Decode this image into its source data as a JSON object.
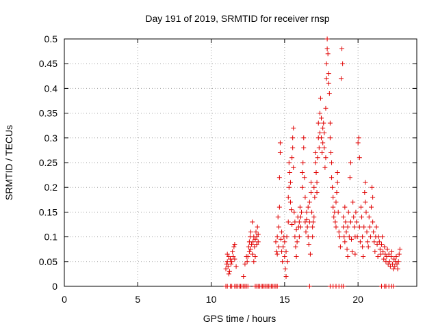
{
  "chart_data": {
    "type": "scatter",
    "title": "Day 191 of 2019, SRMTID for receiver rnsp",
    "xlabel": "GPS time / hours",
    "ylabel": "SRMTID / TECUs",
    "xlim": [
      0,
      24
    ],
    "ylim": [
      0,
      0.5
    ],
    "grid": true,
    "color": "#e00000",
    "x_ticks": [
      {
        "value": 0,
        "label": "0"
      },
      {
        "value": 5,
        "label": "5"
      },
      {
        "value": 10,
        "label": "10"
      },
      {
        "value": 15,
        "label": "15"
      },
      {
        "value": 20,
        "label": "20"
      }
    ],
    "y_ticks": [
      {
        "value": 0,
        "label": "0"
      },
      {
        "value": 0.05,
        "label": "0.05"
      },
      {
        "value": 0.1,
        "label": "0.1"
      },
      {
        "value": 0.15,
        "label": "0.15"
      },
      {
        "value": 0.2,
        "label": "0.2"
      },
      {
        "value": 0.25,
        "label": "0.25"
      },
      {
        "value": 0.3,
        "label": "0.3"
      },
      {
        "value": 0.35,
        "label": "0.35"
      },
      {
        "value": 0.4,
        "label": "0.4"
      },
      {
        "value": 0.45,
        "label": "0.45"
      },
      {
        "value": 0.5,
        "label": "0.5"
      }
    ],
    "series": [
      {
        "name": "SRMTID",
        "points": [
          [
            11.0,
            0.0
          ],
          [
            11.1,
            0.0
          ],
          [
            11.3,
            0.0
          ],
          [
            11.4,
            0.0
          ],
          [
            11.6,
            0.0
          ],
          [
            11.7,
            0.0
          ],
          [
            11.8,
            0.0
          ],
          [
            11.9,
            0.0
          ],
          [
            12.0,
            0.0
          ],
          [
            12.1,
            0.0
          ],
          [
            12.2,
            0.0
          ],
          [
            12.3,
            0.0
          ],
          [
            12.4,
            0.0
          ],
          [
            12.5,
            0.0
          ],
          [
            13.0,
            0.0
          ],
          [
            13.1,
            0.0
          ],
          [
            13.2,
            0.0
          ],
          [
            13.3,
            0.0
          ],
          [
            13.4,
            0.0
          ],
          [
            13.5,
            0.0
          ],
          [
            13.6,
            0.0
          ],
          [
            13.7,
            0.0
          ],
          [
            13.8,
            0.0
          ],
          [
            13.9,
            0.0
          ],
          [
            14.0,
            0.0
          ],
          [
            14.1,
            0.0
          ],
          [
            14.2,
            0.0
          ],
          [
            14.3,
            0.0
          ],
          [
            14.4,
            0.0
          ],
          [
            14.5,
            0.0
          ],
          [
            16.7,
            0.0
          ],
          [
            18.1,
            0.0
          ],
          [
            18.3,
            0.0
          ],
          [
            18.5,
            0.0
          ],
          [
            18.7,
            0.0
          ],
          [
            18.9,
            0.0
          ],
          [
            19.0,
            0.0
          ],
          [
            21.6,
            0.0
          ],
          [
            21.8,
            0.0
          ],
          [
            21.9,
            0.0
          ],
          [
            22.1,
            0.0
          ],
          [
            22.3,
            0.0
          ],
          [
            22.4,
            0.0
          ],
          [
            11.0,
            0.035
          ],
          [
            11.05,
            0.045
          ],
          [
            11.1,
            0.05
          ],
          [
            11.15,
            0.04
          ],
          [
            11.2,
            0.06
          ],
          [
            11.25,
            0.03
          ],
          [
            11.3,
            0.055
          ],
          [
            11.1,
            0.065
          ],
          [
            11.2,
            0.025
          ],
          [
            11.35,
            0.045
          ],
          [
            11.4,
            0.05
          ],
          [
            11.45,
            0.07
          ],
          [
            11.5,
            0.06
          ],
          [
            11.55,
            0.08
          ],
          [
            11.6,
            0.055
          ],
          [
            11.6,
            0.085
          ],
          [
            11.7,
            0.04
          ],
          [
            12.2,
            0.02
          ],
          [
            12.3,
            0.045
          ],
          [
            12.4,
            0.06
          ],
          [
            12.45,
            0.05
          ],
          [
            12.5,
            0.06
          ],
          [
            12.55,
            0.08
          ],
          [
            12.6,
            0.07
          ],
          [
            12.6,
            0.09
          ],
          [
            12.65,
            0.1
          ],
          [
            12.7,
            0.075
          ],
          [
            12.7,
            0.11
          ],
          [
            12.75,
            0.085
          ],
          [
            12.8,
            0.13
          ],
          [
            12.8,
            0.065
          ],
          [
            12.85,
            0.09
          ],
          [
            12.9,
            0.05
          ],
          [
            12.9,
            0.1
          ],
          [
            12.95,
            0.08
          ],
          [
            13.0,
            0.095
          ],
          [
            13.0,
            0.06
          ],
          [
            13.05,
            0.11
          ],
          [
            13.1,
            0.1
          ],
          [
            13.1,
            0.085
          ],
          [
            13.15,
            0.12
          ],
          [
            13.2,
            0.105
          ],
          [
            13.2,
            0.09
          ],
          [
            14.4,
            0.09
          ],
          [
            14.45,
            0.07
          ],
          [
            14.5,
            0.1
          ],
          [
            14.5,
            0.065
          ],
          [
            14.55,
            0.14
          ],
          [
            14.6,
            0.08
          ],
          [
            14.6,
            0.12
          ],
          [
            14.65,
            0.16
          ],
          [
            14.65,
            0.22
          ],
          [
            14.7,
            0.27
          ],
          [
            14.7,
            0.29
          ],
          [
            14.75,
            0.095
          ],
          [
            14.8,
            0.11
          ],
          [
            14.8,
            0.07
          ],
          [
            14.85,
            0.05
          ],
          [
            14.9,
            0.08
          ],
          [
            14.95,
            0.1
          ],
          [
            15.0,
            0.06
          ],
          [
            15.0,
            0.09
          ],
          [
            15.05,
            0.035
          ],
          [
            15.1,
            0.02
          ],
          [
            15.1,
            0.07
          ],
          [
            15.15,
            0.1
          ],
          [
            15.2,
            0.05
          ],
          [
            15.25,
            0.13
          ],
          [
            15.25,
            0.18
          ],
          [
            15.3,
            0.2
          ],
          [
            15.3,
            0.25
          ],
          [
            15.35,
            0.23
          ],
          [
            15.4,
            0.21
          ],
          [
            15.4,
            0.17
          ],
          [
            15.45,
            0.155
          ],
          [
            15.5,
            0.125
          ],
          [
            15.5,
            0.26
          ],
          [
            15.55,
            0.28
          ],
          [
            15.55,
            0.3
          ],
          [
            15.6,
            0.32
          ],
          [
            15.6,
            0.24
          ],
          [
            15.65,
            0.15
          ],
          [
            15.7,
            0.13
          ],
          [
            15.7,
            0.1
          ],
          [
            15.75,
            0.08
          ],
          [
            15.8,
            0.06
          ],
          [
            15.8,
            0.115
          ],
          [
            15.85,
            0.09
          ],
          [
            15.9,
            0.14
          ],
          [
            15.95,
            0.12
          ],
          [
            16.0,
            0.1
          ],
          [
            16.0,
            0.13
          ],
          [
            16.05,
            0.16
          ],
          [
            16.1,
            0.14
          ],
          [
            16.1,
            0.12
          ],
          [
            16.15,
            0.15
          ],
          [
            16.2,
            0.2
          ],
          [
            16.2,
            0.23
          ],
          [
            16.25,
            0.25
          ],
          [
            16.3,
            0.28
          ],
          [
            16.3,
            0.3
          ],
          [
            16.35,
            0.22
          ],
          [
            16.4,
            0.18
          ],
          [
            16.4,
            0.13
          ],
          [
            16.45,
            0.11
          ],
          [
            16.5,
            0.15
          ],
          [
            16.5,
            0.135
          ],
          [
            16.55,
            0.12
          ],
          [
            16.6,
            0.16
          ],
          [
            16.6,
            0.1
          ],
          [
            16.65,
            0.085
          ],
          [
            16.7,
            0.17
          ],
          [
            16.7,
            0.13
          ],
          [
            16.75,
            0.065
          ],
          [
            16.8,
            0.19
          ],
          [
            16.8,
            0.21
          ],
          [
            16.85,
            0.15
          ],
          [
            16.9,
            0.12
          ],
          [
            16.9,
            0.1
          ],
          [
            16.95,
            0.13
          ],
          [
            17.0,
            0.14
          ],
          [
            17.0,
            0.2
          ],
          [
            17.05,
            0.18
          ],
          [
            17.1,
            0.25
          ],
          [
            17.1,
            0.27
          ],
          [
            17.15,
            0.23
          ],
          [
            17.2,
            0.21
          ],
          [
            17.2,
            0.19
          ],
          [
            17.25,
            0.26
          ],
          [
            17.3,
            0.3
          ],
          [
            17.3,
            0.33
          ],
          [
            17.35,
            0.28
          ],
          [
            17.4,
            0.31
          ],
          [
            17.4,
            0.35
          ],
          [
            17.45,
            0.38
          ],
          [
            17.5,
            0.34
          ],
          [
            17.5,
            0.3
          ],
          [
            17.55,
            0.27
          ],
          [
            17.6,
            0.29
          ],
          [
            17.6,
            0.32
          ],
          [
            17.65,
            0.33
          ],
          [
            17.7,
            0.31
          ],
          [
            17.7,
            0.28
          ],
          [
            17.75,
            0.24
          ],
          [
            17.8,
            0.26
          ],
          [
            17.8,
            0.36
          ],
          [
            17.85,
            0.42
          ],
          [
            17.85,
            0.45
          ],
          [
            17.9,
            0.48
          ],
          [
            17.9,
            0.5
          ],
          [
            17.95,
            0.47
          ],
          [
            18.0,
            0.43
          ],
          [
            18.0,
            0.41
          ],
          [
            18.05,
            0.39
          ],
          [
            18.1,
            0.33
          ],
          [
            18.1,
            0.3
          ],
          [
            18.15,
            0.27
          ],
          [
            18.2,
            0.25
          ],
          [
            18.2,
            0.22
          ],
          [
            18.25,
            0.2
          ],
          [
            18.3,
            0.18
          ],
          [
            18.3,
            0.16
          ],
          [
            18.35,
            0.14
          ],
          [
            18.4,
            0.15
          ],
          [
            18.45,
            0.13
          ],
          [
            18.5,
            0.12
          ],
          [
            18.5,
            0.17
          ],
          [
            18.55,
            0.19
          ],
          [
            18.6,
            0.21
          ],
          [
            18.6,
            0.23
          ],
          [
            18.65,
            0.15
          ],
          [
            18.7,
            0.11
          ],
          [
            18.75,
            0.1
          ],
          [
            18.8,
            0.08
          ],
          [
            18.85,
            0.42
          ],
          [
            18.9,
            0.48
          ],
          [
            18.95,
            0.45
          ],
          [
            19.0,
            0.12
          ],
          [
            19.0,
            0.14
          ],
          [
            19.05,
            0.1
          ],
          [
            19.1,
            0.09
          ],
          [
            19.1,
            0.16
          ],
          [
            19.15,
            0.13
          ],
          [
            19.2,
            0.11
          ],
          [
            19.25,
            0.075
          ],
          [
            19.3,
            0.12
          ],
          [
            19.3,
            0.06
          ],
          [
            19.35,
            0.15
          ],
          [
            19.4,
            0.1
          ],
          [
            19.45,
            0.22
          ],
          [
            19.5,
            0.25
          ],
          [
            19.5,
            0.13
          ],
          [
            19.55,
            0.095
          ],
          [
            19.6,
            0.07
          ],
          [
            19.65,
            0.17
          ],
          [
            19.7,
            0.14
          ],
          [
            19.75,
            0.12
          ],
          [
            19.8,
            0.1
          ],
          [
            19.8,
            0.065
          ],
          [
            19.85,
            0.15
          ],
          [
            19.9,
            0.13
          ],
          [
            19.95,
            0.1
          ],
          [
            20.0,
            0.29
          ],
          [
            20.05,
            0.3
          ],
          [
            20.1,
            0.26
          ],
          [
            20.1,
            0.12
          ],
          [
            20.15,
            0.09
          ],
          [
            20.2,
            0.16
          ],
          [
            20.25,
            0.14
          ],
          [
            20.3,
            0.1
          ],
          [
            20.3,
            0.08
          ],
          [
            20.35,
            0.06
          ],
          [
            20.4,
            0.12
          ],
          [
            20.45,
            0.19
          ],
          [
            20.5,
            0.21
          ],
          [
            20.5,
            0.17
          ],
          [
            20.55,
            0.15
          ],
          [
            20.6,
            0.11
          ],
          [
            20.65,
            0.09
          ],
          [
            20.7,
            0.08
          ],
          [
            20.75,
            0.14
          ],
          [
            20.8,
            0.12
          ],
          [
            20.85,
            0.1
          ],
          [
            20.9,
            0.16
          ],
          [
            20.95,
            0.2
          ],
          [
            21.0,
            0.18
          ],
          [
            21.0,
            0.13
          ],
          [
            21.05,
            0.11
          ],
          [
            21.1,
            0.09
          ],
          [
            21.15,
            0.07
          ],
          [
            21.2,
            0.1
          ],
          [
            21.25,
            0.12
          ],
          [
            21.3,
            0.085
          ],
          [
            21.35,
            0.06
          ],
          [
            21.4,
            0.1
          ],
          [
            21.45,
            0.09
          ],
          [
            21.5,
            0.075
          ],
          [
            21.55,
            0.065
          ],
          [
            21.6,
            0.085
          ],
          [
            21.65,
            0.1
          ],
          [
            21.7,
            0.07
          ],
          [
            21.75,
            0.055
          ],
          [
            21.8,
            0.08
          ],
          [
            21.85,
            0.065
          ],
          [
            21.9,
            0.05
          ],
          [
            21.95,
            0.06
          ],
          [
            22.0,
            0.075
          ],
          [
            22.05,
            0.045
          ],
          [
            22.1,
            0.065
          ],
          [
            22.15,
            0.05
          ],
          [
            22.2,
            0.04
          ],
          [
            22.25,
            0.06
          ],
          [
            22.3,
            0.07
          ],
          [
            22.35,
            0.045
          ],
          [
            22.4,
            0.035
          ],
          [
            22.45,
            0.055
          ],
          [
            22.5,
            0.04
          ],
          [
            22.55,
            0.05
          ],
          [
            22.6,
            0.06
          ],
          [
            22.65,
            0.045
          ],
          [
            22.7,
            0.035
          ],
          [
            22.75,
            0.05
          ],
          [
            22.8,
            0.065
          ],
          [
            22.85,
            0.075
          ]
        ]
      }
    ]
  }
}
